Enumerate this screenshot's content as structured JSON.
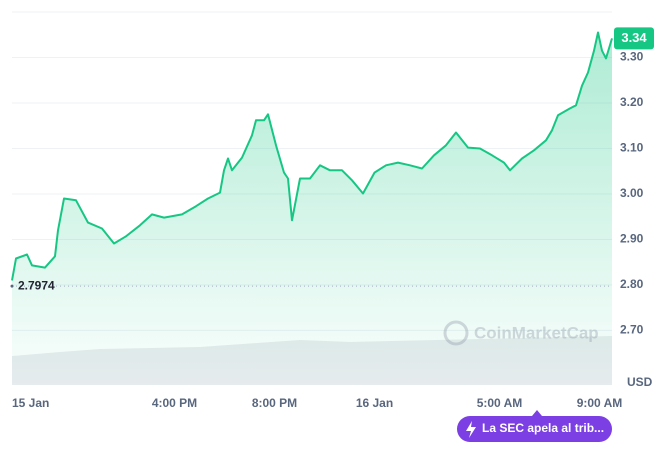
{
  "chart_data": {
    "type": "line",
    "series": [
      {
        "name": "USD",
        "color": "#16c784",
        "x": [
          9.5,
          9.66,
          10.1,
          10.3,
          10.82,
          11.22,
          11.34,
          11.58,
          12.06,
          12.54,
          13.1,
          13.58,
          14.06,
          14.62,
          15.1,
          15.58,
          16.3,
          16.86,
          17.34,
          17.82,
          17.98,
          18.14,
          18.3,
          18.7,
          19.1,
          19.26,
          19.58,
          19.74,
          20.06,
          20.38,
          20.54,
          20.7,
          21.02,
          21.42,
          21.82,
          22.22,
          22.7,
          23.1,
          23.54,
          24.0,
          24.46,
          24.94,
          25.42,
          25.9,
          26.38,
          26.86,
          27.26,
          27.74,
          28.22,
          28.7,
          29.18,
          29.42,
          29.9,
          30.38,
          30.86,
          31.1,
          31.34,
          31.82,
          32.06,
          32.3,
          32.54,
          32.78,
          32.94,
          33.1,
          33.26,
          33.5
        ],
        "values": [
          2.81,
          2.858,
          2.867,
          2.843,
          2.838,
          2.863,
          2.92,
          2.99,
          2.986,
          2.937,
          2.924,
          2.891,
          2.907,
          2.931,
          2.955,
          2.948,
          2.955,
          2.973,
          2.99,
          3.003,
          3.052,
          3.078,
          3.052,
          3.08,
          3.129,
          3.162,
          3.162,
          3.175,
          3.107,
          3.047,
          3.034,
          2.942,
          3.034,
          3.034,
          3.063,
          3.052,
          3.052,
          3.03,
          3.001,
          3.047,
          3.063,
          3.069,
          3.063,
          3.056,
          3.085,
          3.107,
          3.135,
          3.102,
          3.1,
          3.085,
          3.069,
          3.052,
          3.078,
          3.096,
          3.118,
          3.14,
          3.173,
          3.188,
          3.195,
          3.238,
          3.267,
          3.315,
          3.355,
          3.315,
          3.298,
          3.342
        ]
      }
    ],
    "xlim": [
      9.5,
      33.5
    ],
    "xticks": [
      {
        "value": 9.5,
        "label": "15 Jan"
      },
      {
        "value": 16,
        "label": "4:00 PM"
      },
      {
        "value": 20,
        "label": "8:00 PM"
      },
      {
        "value": 24,
        "label": "16 Jan"
      },
      {
        "value": 29,
        "label": "5:00 AM"
      },
      {
        "value": 33,
        "label": "9:00 AM"
      }
    ],
    "ylim": [
      2.58,
      3.4
    ],
    "yticks": [
      {
        "value": 2.7,
        "label": "2.70"
      },
      {
        "value": 2.8,
        "label": "2.80"
      },
      {
        "value": 2.9,
        "label": "2.90"
      },
      {
        "value": 3.0,
        "label": "3.00"
      },
      {
        "value": 3.1,
        "label": "3.10"
      },
      {
        "value": 3.2,
        "label": "3.20"
      },
      {
        "value": 3.3,
        "label": "3.30"
      }
    ],
    "y_axis_label": "USD",
    "reference": 2.7974,
    "last_label": "3.34",
    "watermark": "CoinMarketCap",
    "annotation": {
      "x": 30.5,
      "text": "La SEC apela al trib..."
    },
    "grid": true
  }
}
